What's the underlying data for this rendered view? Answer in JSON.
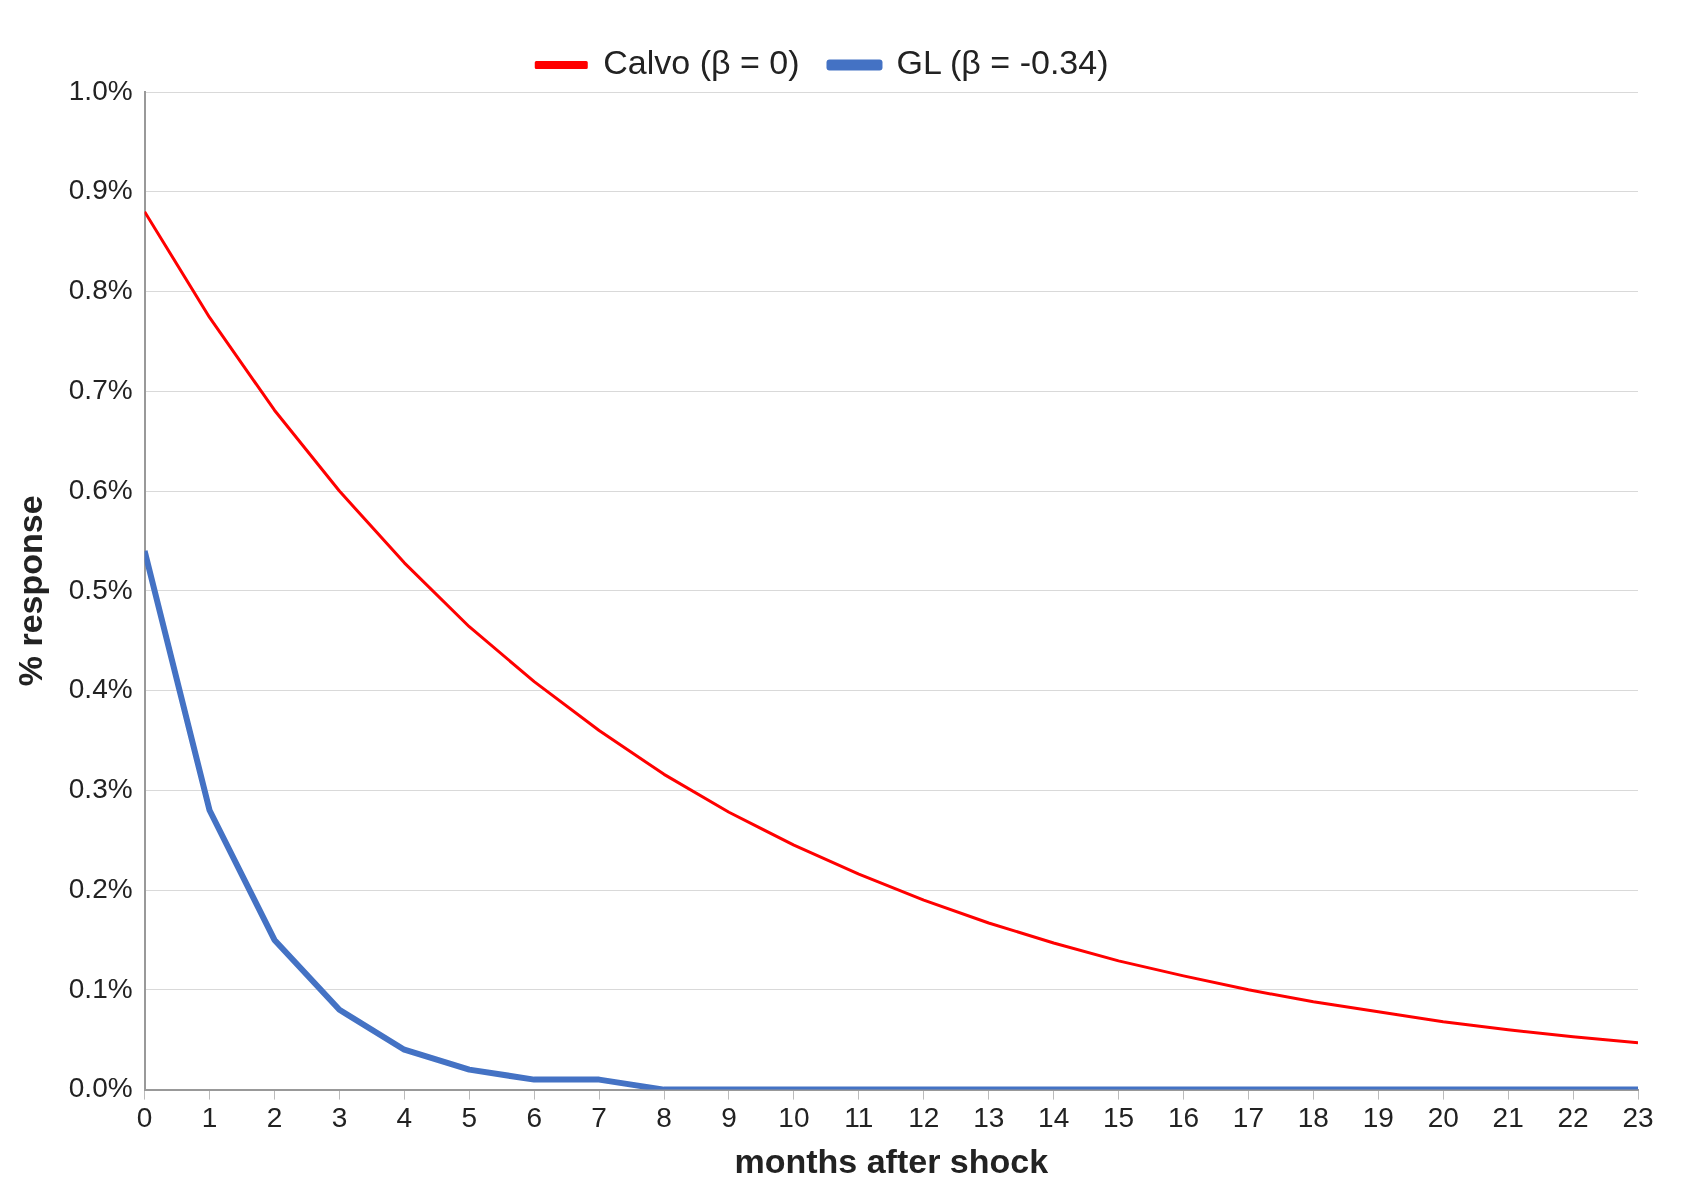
{
  "chart_data": {
    "type": "line",
    "xlabel": "months after shock",
    "ylabel": "% response",
    "x": [
      0,
      1,
      2,
      3,
      4,
      5,
      6,
      7,
      8,
      9,
      10,
      11,
      12,
      13,
      14,
      15,
      16,
      17,
      18,
      19,
      20,
      21,
      22,
      23
    ],
    "xlim": [
      0,
      23
    ],
    "xticks": [
      0,
      1,
      2,
      3,
      4,
      5,
      6,
      7,
      8,
      9,
      10,
      11,
      12,
      13,
      14,
      15,
      16,
      17,
      18,
      19,
      20,
      21,
      22,
      23
    ],
    "ylim": [
      0,
      1.0
    ],
    "yticks": [
      {
        "value": 0,
        "label": "0.0%"
      },
      {
        "value": 0.1,
        "label": "0.1%"
      },
      {
        "value": 0.2,
        "label": "0.2%"
      },
      {
        "value": 0.3,
        "label": "0.3%"
      },
      {
        "value": 0.4,
        "label": "0.4%"
      },
      {
        "value": 0.5,
        "label": "0.5%"
      },
      {
        "value": 0.6,
        "label": "0.6%"
      },
      {
        "value": 0.7,
        "label": "0.7%"
      },
      {
        "value": 0.8,
        "label": "0.8%"
      },
      {
        "value": 0.9,
        "label": "0.9%"
      },
      {
        "value": 1.0,
        "label": "1.0%"
      }
    ],
    "grid": "y",
    "legend": "top",
    "marker": "none",
    "line_style": "solid",
    "series": [
      {
        "name": "Calvo (β = 0)",
        "color": "#ff0000",
        "values": [
          0.88,
          0.774,
          0.681,
          0.6,
          0.528,
          0.464,
          0.409,
          0.36,
          0.316,
          0.278,
          0.245,
          0.216,
          0.19,
          0.167,
          0.147,
          0.129,
          0.114,
          0.1,
          0.088,
          0.078,
          0.068,
          0.06,
          0.053,
          0.047
        ]
      },
      {
        "name": "GL (β = -0.34)",
        "color": "#4472c4",
        "values": [
          0.54,
          0.28,
          0.15,
          0.08,
          0.04,
          0.02,
          0.01,
          0.01,
          0,
          0,
          0,
          0,
          0,
          0,
          0,
          0,
          0,
          0,
          0,
          0,
          0,
          0,
          0,
          0
        ]
      }
    ]
  }
}
